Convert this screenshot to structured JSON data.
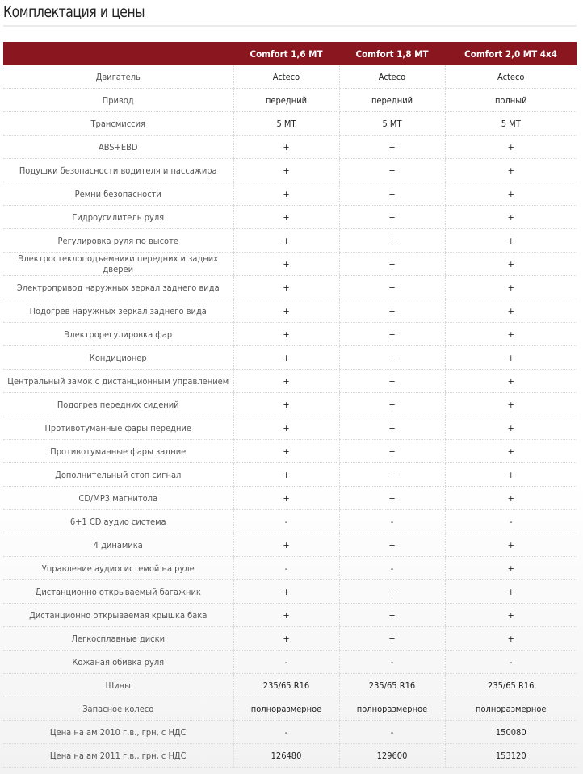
{
  "title": "Комплектация и цены",
  "columns": [
    "",
    "Comfort 1,6 MT",
    "Comfort 1,8 MT",
    "Comfort 2,0 MT 4x4"
  ],
  "rows": [
    [
      "Двигатель",
      "Acteco",
      "Acteco",
      "Acteco"
    ],
    [
      "Привод",
      "передний",
      "передний",
      "полный"
    ],
    [
      "Трансмиссия",
      "5 MT",
      "5 MT",
      "5 MT"
    ],
    [
      "ABS+EBD",
      "+",
      "+",
      "+"
    ],
    [
      "Подушки безопасности водителя и пассажира",
      "+",
      "+",
      "+"
    ],
    [
      "Ремни безопасности",
      "+",
      "+",
      "+"
    ],
    [
      "Гидроусилитель руля",
      "+",
      "+",
      "+"
    ],
    [
      "Регулировка руля по высоте",
      "+",
      "+",
      "+"
    ],
    [
      "Электростеклоподъемники передних и задних дверей",
      "+",
      "+",
      "+"
    ],
    [
      "Электропривод наружных зеркал заднего вида",
      "+",
      "+",
      "+"
    ],
    [
      "Подогрев наружных зеркал заднего вида",
      "+",
      "+",
      "+"
    ],
    [
      "Электрорегулировка фар",
      "+",
      "+",
      "+"
    ],
    [
      "Кондиционер",
      "+",
      "+",
      "+"
    ],
    [
      "Центральный замок с дистанционным управлением",
      "+",
      "+",
      "+"
    ],
    [
      "Подогрев передних сидений",
      "+",
      "+",
      "+"
    ],
    [
      "Противотуманные фары передние",
      "+",
      "+",
      "+"
    ],
    [
      "Противотуманные фары задние",
      "+",
      "+",
      "+"
    ],
    [
      "Дополнительный стоп сигнал",
      "+",
      "+",
      "+"
    ],
    [
      "CD/MP3 магнитола",
      "+",
      "+",
      "+"
    ],
    [
      "6+1 CD аудио система",
      "-",
      "-",
      "-"
    ],
    [
      "4 динамика",
      "+",
      "+",
      "+"
    ],
    [
      "Управление аудиосистемой на руле",
      "-",
      "-",
      "+"
    ],
    [
      "Дистанционно открываемый багажник",
      "+",
      "+",
      "+"
    ],
    [
      "Дистанционно открываемая крышка бака",
      "+",
      "+",
      "+"
    ],
    [
      "Легкосплавные диски",
      "+",
      "+",
      "+"
    ],
    [
      "Кожаная обивка руля",
      "-",
      "-",
      "-"
    ],
    [
      "Шины",
      "235/65 R16",
      "235/65 R16",
      "235/65 R16"
    ],
    [
      "Запасное колесо",
      "полноразмерное",
      "полноразмерное",
      "полноразмерное"
    ],
    [
      "Цена на ам 2010 г.в., грн, с НДС",
      "-",
      "-",
      "150080"
    ],
    [
      "Цена на ам 2011 г.в., грн, с НДС",
      "126480",
      "129600",
      "153120"
    ]
  ],
  "colors": {
    "header_bg": "#8a1620",
    "header_text": "#ffffff"
  }
}
